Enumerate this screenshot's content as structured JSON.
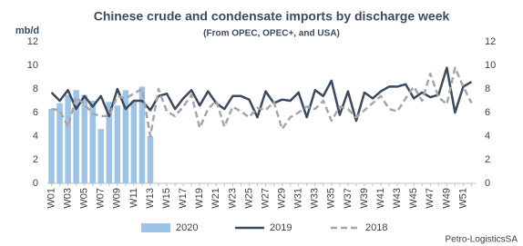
{
  "chart_data": {
    "type": "combo",
    "title": "Chinese crude and condensate imports by discharge week",
    "subtitle": "(From OPEC, OPEC+, and USA)",
    "y_label": "mb/d",
    "source": "Petro-LogisticsSA",
    "categories": [
      "W01",
      null,
      "W03",
      null,
      "W05",
      null,
      "W07",
      null,
      "W09",
      null,
      "W11",
      null,
      "W13",
      null,
      "W15",
      null,
      "W17",
      null,
      "W19",
      null,
      "W21",
      null,
      "W23",
      null,
      "W25",
      null,
      "W27",
      null,
      "W29",
      null,
      "W31",
      null,
      "W33",
      null,
      "W35",
      null,
      "W37",
      null,
      "W39",
      null,
      "W41",
      null,
      "W43",
      null,
      "W45",
      null,
      "W47",
      null,
      "W49",
      null,
      "W51",
      null
    ],
    "series": [
      {
        "name": "2020",
        "type": "bar",
        "color": "#9dc3e6",
        "values": [
          6.3,
          6.8,
          7.5,
          7.9,
          7.5,
          7.0,
          4.6,
          6.9,
          6.6,
          7.9,
          7.0,
          8.2,
          4.0,
          null,
          null,
          null,
          null,
          null,
          null,
          null,
          null,
          null,
          null,
          null,
          null,
          null,
          null,
          null,
          null,
          null,
          null,
          null,
          null,
          null,
          null,
          null,
          null,
          null,
          null,
          null,
          null,
          null,
          null,
          null,
          null,
          null,
          null,
          null,
          null,
          null,
          null,
          null
        ]
      },
      {
        "name": "2019",
        "type": "line",
        "color": "#3b4a5e",
        "dash": false,
        "values": [
          7.7,
          7.0,
          7.9,
          6.3,
          7.4,
          6.5,
          7.4,
          5.7,
          8.0,
          6.3,
          7.0,
          7.0,
          6.2,
          7.4,
          7.6,
          6.3,
          7.2,
          7.9,
          6.6,
          7.8,
          6.8,
          6.3,
          7.4,
          7.4,
          7.1,
          5.6,
          7.8,
          6.8,
          7.1,
          7.0,
          7.7,
          5.6,
          7.9,
          7.4,
          8.7,
          5.8,
          7.8,
          5.3,
          7.7,
          7.2,
          7.8,
          8.2,
          8.2,
          8.4,
          7.2,
          7.7,
          7.3,
          7.5,
          9.8,
          6.0,
          8.2,
          8.6
        ]
      },
      {
        "name": "2018",
        "type": "line",
        "color": "#a6a6a6",
        "dash": true,
        "values": [
          6.3,
          6.2,
          4.8,
          7.3,
          6.7,
          5.9,
          5.7,
          5.7,
          7.4,
          7.2,
          7.6,
          8.0,
          4.0,
          8.0,
          6.1,
          5.7,
          6.5,
          7.5,
          4.7,
          6.3,
          7.0,
          4.8,
          6.5,
          6.1,
          5.6,
          6.4,
          6.2,
          6.9,
          4.6,
          5.6,
          6.0,
          6.5,
          6.3,
          7.0,
          5.3,
          6.5,
          6.3,
          5.6,
          6.2,
          6.8,
          7.4,
          6.3,
          6.1,
          7.2,
          8.2,
          7.0,
          9.3,
          7.3,
          6.7,
          9.8,
          8.2,
          6.8
        ]
      }
    ],
    "ylim": [
      0,
      12
    ],
    "yticks": [
      0,
      2,
      4,
      6,
      8,
      10,
      12
    ],
    "y2lim": [
      0,
      12
    ],
    "y2ticks": [
      0,
      2,
      4,
      6,
      8,
      10,
      12
    ],
    "grid": false,
    "legend": "bottom"
  }
}
